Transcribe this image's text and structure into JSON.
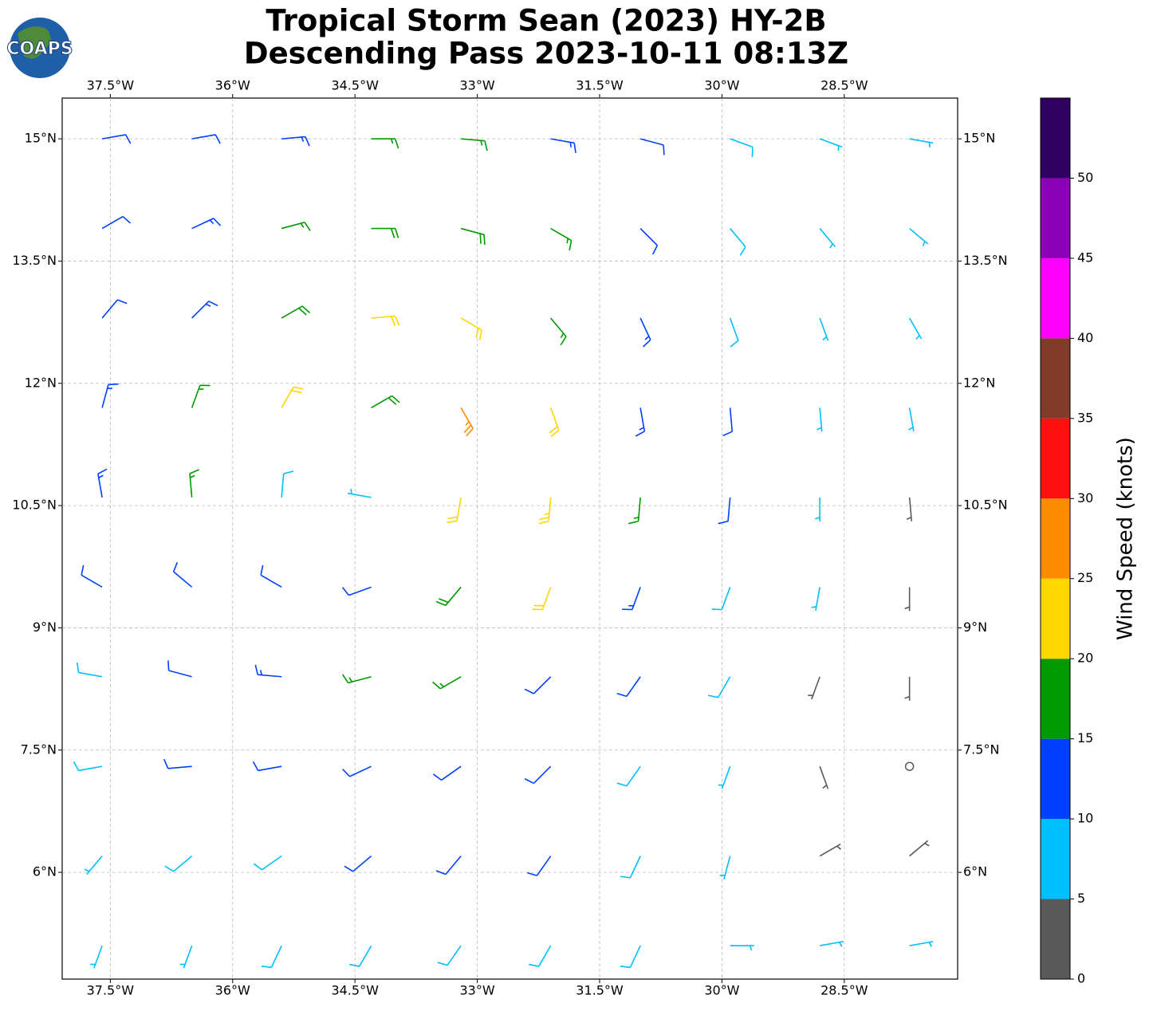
{
  "logo": "COAPS",
  "chart_data": {
    "type": "barbs",
    "title": [
      "Tropical Storm Sean (2023) HY-2B",
      "Descending Pass 2023-10-11 08:13Z"
    ],
    "xlim": [
      -38.09,
      -27.11
    ],
    "ylim": [
      4.69,
      15.5
    ],
    "xticks": [
      {
        "value": -37.5,
        "label": "37.5°W"
      },
      {
        "value": -36,
        "label": "36°W"
      },
      {
        "value": -34.5,
        "label": "34.5°W"
      },
      {
        "value": -33,
        "label": "33°W"
      },
      {
        "value": -31.5,
        "label": "31.5°W"
      },
      {
        "value": -30,
        "label": "30°W"
      },
      {
        "value": -28.5,
        "label": "28.5°W"
      }
    ],
    "yticks": [
      {
        "value": 6,
        "label": "6°N"
      },
      {
        "value": 7.5,
        "label": "7.5°N"
      },
      {
        "value": 9,
        "label": "9°N"
      },
      {
        "value": 10.5,
        "label": "10.5°N"
      },
      {
        "value": 12,
        "label": "12°N"
      },
      {
        "value": 13.5,
        "label": "13.5°N"
      },
      {
        "value": 15,
        "label": "15°N"
      }
    ],
    "grid": true,
    "lons": [
      -37.6,
      -36.5,
      -35.4,
      -34.3,
      -33.2,
      -32.1,
      -31.0,
      -29.9,
      -28.8,
      -27.7
    ],
    "lats": [
      15.0,
      13.9,
      12.8,
      11.7,
      10.6,
      9.5,
      8.4,
      7.3,
      6.2,
      5.1
    ],
    "speed": [
      [
        12,
        12,
        14,
        17,
        17,
        13,
        12,
        8,
        7,
        7
      ],
      [
        11,
        13,
        17,
        19,
        18,
        15,
        12,
        8,
        7,
        6
      ],
      [
        11,
        14,
        18,
        22,
        21,
        17,
        13,
        9,
        7,
        6
      ],
      [
        13,
        17,
        21,
        18,
        26,
        22,
        14,
        10,
        7,
        5
      ],
      [
        14,
        16,
        8,
        5,
        22,
        24,
        15,
        10,
        6,
        4
      ],
      [
        12,
        12,
        11,
        12,
        18,
        22,
        13,
        9,
        5,
        3
      ],
      [
        9,
        11,
        13,
        15,
        16,
        12,
        10,
        8,
        4,
        3
      ],
      [
        8,
        10,
        11,
        12,
        12,
        11,
        9,
        7,
        3,
        2
      ],
      [
        7,
        8,
        9,
        10,
        11,
        10,
        8,
        6,
        3,
        3
      ],
      [
        7,
        7,
        8,
        8,
        9,
        9,
        8,
        7,
        6,
        7
      ]
    ],
    "direction": [
      [
        80,
        80,
        85,
        90,
        95,
        100,
        105,
        110,
        110,
        100
      ],
      [
        60,
        65,
        75,
        90,
        105,
        120,
        135,
        140,
        140,
        130
      ],
      [
        40,
        45,
        60,
        85,
        120,
        140,
        155,
        160,
        160,
        150
      ],
      [
        15,
        20,
        30,
        60,
        150,
        160,
        170,
        175,
        175,
        170
      ],
      [
        350,
        355,
        5,
        280,
        190,
        185,
        185,
        185,
        180,
        175
      ],
      [
        300,
        310,
        300,
        250,
        220,
        200,
        200,
        200,
        190,
        180
      ],
      [
        280,
        285,
        275,
        255,
        240,
        225,
        215,
        210,
        200,
        180
      ],
      [
        260,
        265,
        260,
        245,
        235,
        225,
        215,
        200,
        160,
        120
      ],
      [
        220,
        230,
        235,
        230,
        220,
        215,
        205,
        195,
        60,
        50
      ],
      [
        200,
        200,
        205,
        210,
        215,
        210,
        205,
        90,
        80,
        80
      ]
    ],
    "colorbar": {
      "label": "Wind Speed (knots)",
      "bounds": [
        0,
        5,
        10,
        15,
        20,
        25,
        30,
        35,
        40,
        45,
        50,
        55
      ],
      "colors": [
        "#595959",
        "#00bfff",
        "#0040ff",
        "#009900",
        "#ffd700",
        "#ff8c00",
        "#ff1010",
        "#803c28",
        "#ff00ff",
        "#8b00b8",
        "#2e0060"
      ],
      "ticks": [
        0,
        5,
        10,
        15,
        20,
        25,
        30,
        35,
        40,
        45,
        50
      ]
    }
  }
}
